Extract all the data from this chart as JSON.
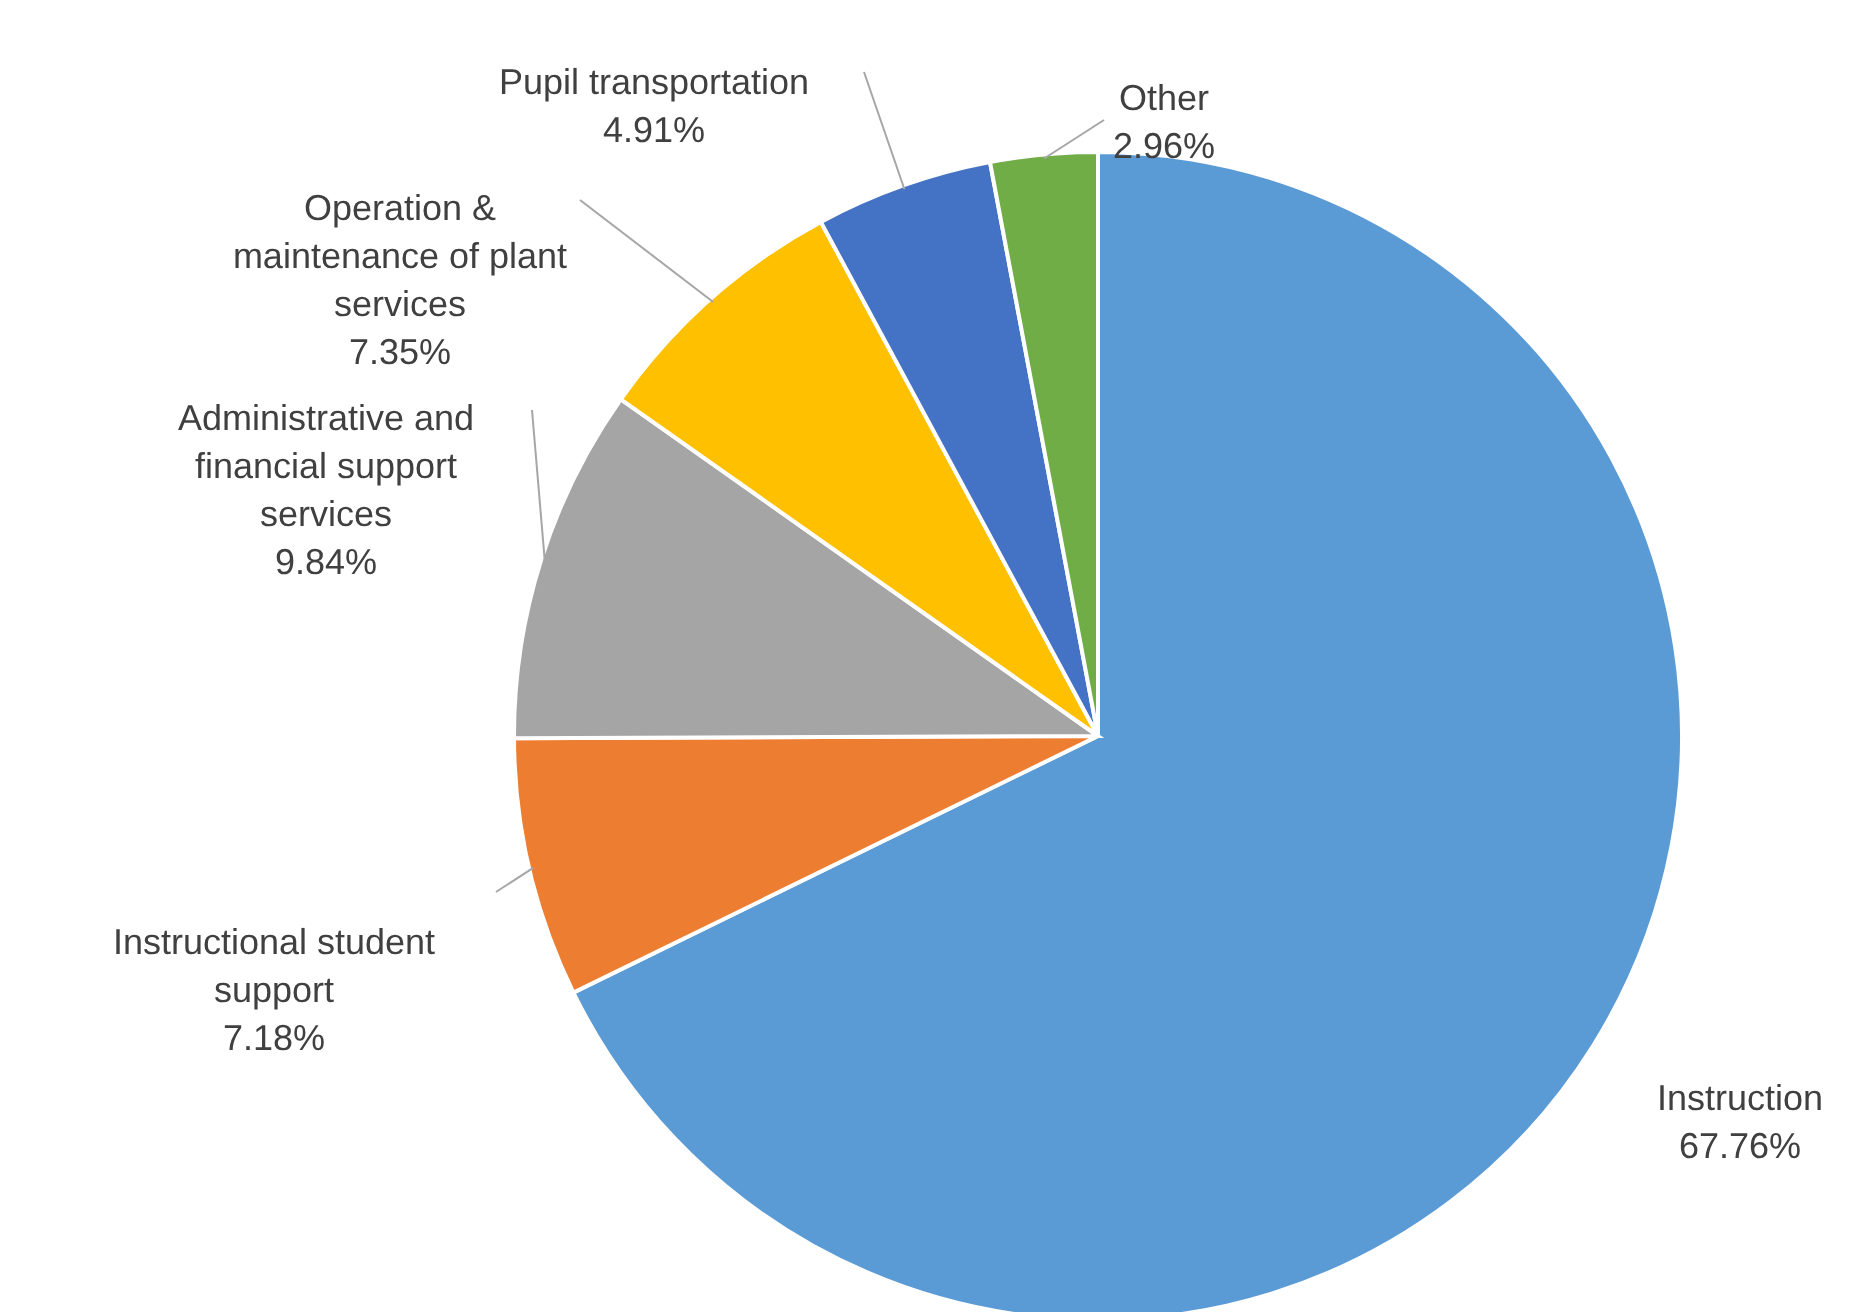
{
  "chart_data": {
    "type": "pie",
    "categories": [
      "Instruction",
      "Instructional student support",
      "Administrative and financial support services",
      "Operation & maintenance of plant services",
      "Pupil transportation",
      "Other"
    ],
    "values": [
      67.76,
      7.18,
      9.84,
      7.35,
      4.91,
      2.96
    ],
    "value_labels": [
      "67.76%",
      "7.18%",
      "9.84%",
      "7.35%",
      "4.91%",
      "2.96%"
    ],
    "colors": [
      "#5b9bd5",
      "#ed7d31",
      "#a5a5a5",
      "#ffc000",
      "#4472c4",
      "#70ad47"
    ]
  }
}
